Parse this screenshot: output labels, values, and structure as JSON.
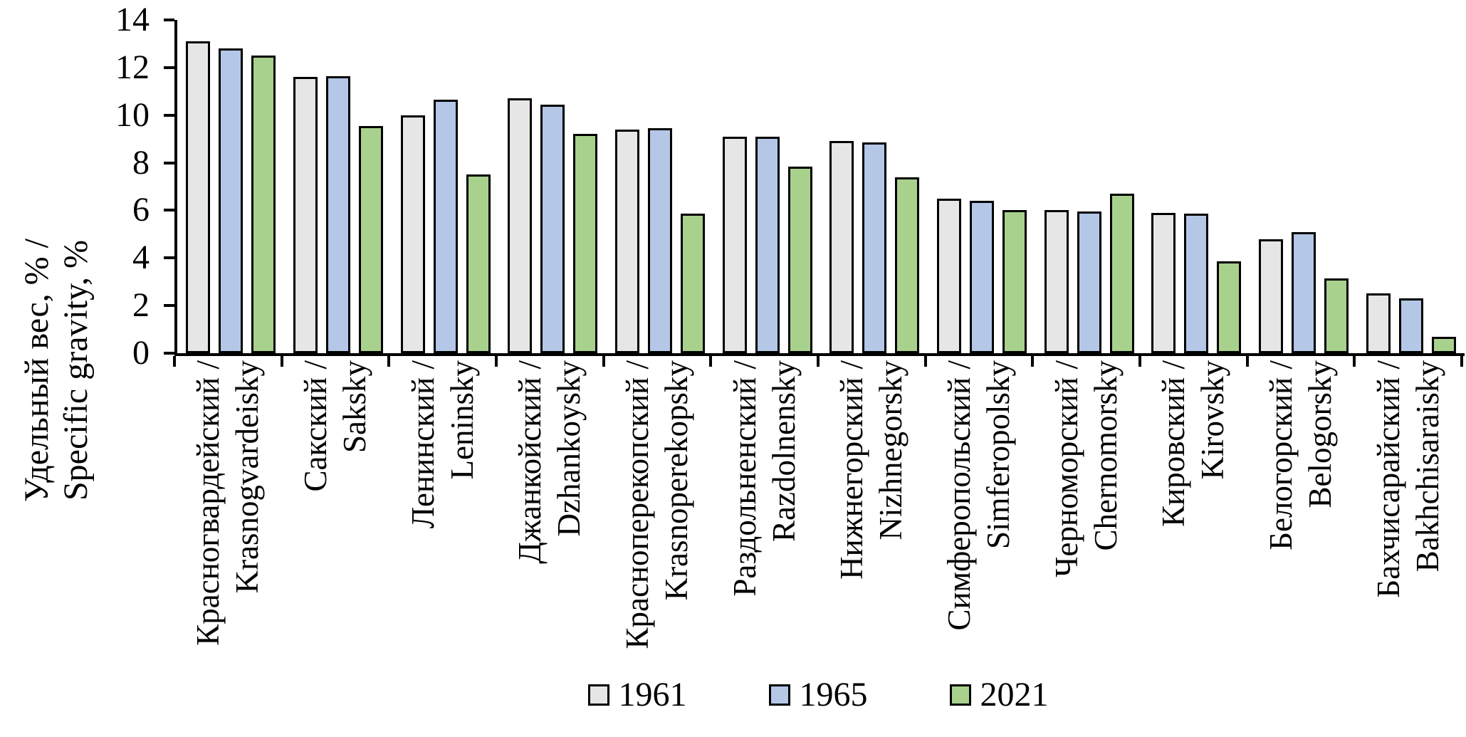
{
  "chart_data": {
    "type": "bar",
    "title": "",
    "ylabel_line1": "Удельный вес, % /",
    "ylabel_line2": "Specific gravity, %",
    "xlabel": "",
    "ylim": [
      0,
      14
    ],
    "yticks": [
      0,
      2,
      4,
      6,
      8,
      10,
      12,
      14
    ],
    "grid": false,
    "legend_position": "bottom-center",
    "axis_color": "#000000",
    "bar_border_color": "#000000",
    "categories": [
      {
        "label_ru": "Красногвардейский /",
        "label_en": "Krasnogvardeisky"
      },
      {
        "label_ru": "Сакский /",
        "label_en": "Saksky"
      },
      {
        "label_ru": "Ленинский /",
        "label_en": "Leninsky"
      },
      {
        "label_ru": "Джанкойский /",
        "label_en": "Dzhankoysky"
      },
      {
        "label_ru": "Красноперекопский /",
        "label_en": "Krasnoperekopsky"
      },
      {
        "label_ru": "Раздольненский /",
        "label_en": "Razdolnensky"
      },
      {
        "label_ru": "Нижнегорский /",
        "label_en": "Nizhnegorsky"
      },
      {
        "label_ru": "Симферопольский /",
        "label_en": "Simferopolsky"
      },
      {
        "label_ru": "Черноморский /",
        "label_en": "Chernomorsky"
      },
      {
        "label_ru": "Кировский /",
        "label_en": "Kirovsky"
      },
      {
        "label_ru": "Белогорский /",
        "label_en": "Belogorsky"
      },
      {
        "label_ru": "Бахчисарайский /",
        "label_en": "Bakhchisaraisky"
      }
    ],
    "series": [
      {
        "name": "1961",
        "color": "#E7E6E6",
        "values": [
          13.1,
          11.6,
          10.0,
          10.7,
          9.4,
          9.1,
          8.9,
          6.5,
          6.0,
          5.9,
          4.8,
          2.5
        ]
      },
      {
        "name": "1965",
        "color": "#B4C7E7",
        "values": [
          12.8,
          11.65,
          10.65,
          10.45,
          9.45,
          9.1,
          8.85,
          6.4,
          5.95,
          5.85,
          5.1,
          2.3
        ]
      },
      {
        "name": "2021",
        "color": "#A9D18E",
        "values": [
          12.5,
          9.55,
          7.5,
          9.2,
          5.85,
          7.85,
          7.4,
          6.0,
          6.7,
          3.85,
          3.15,
          0.7
        ]
      }
    ]
  }
}
